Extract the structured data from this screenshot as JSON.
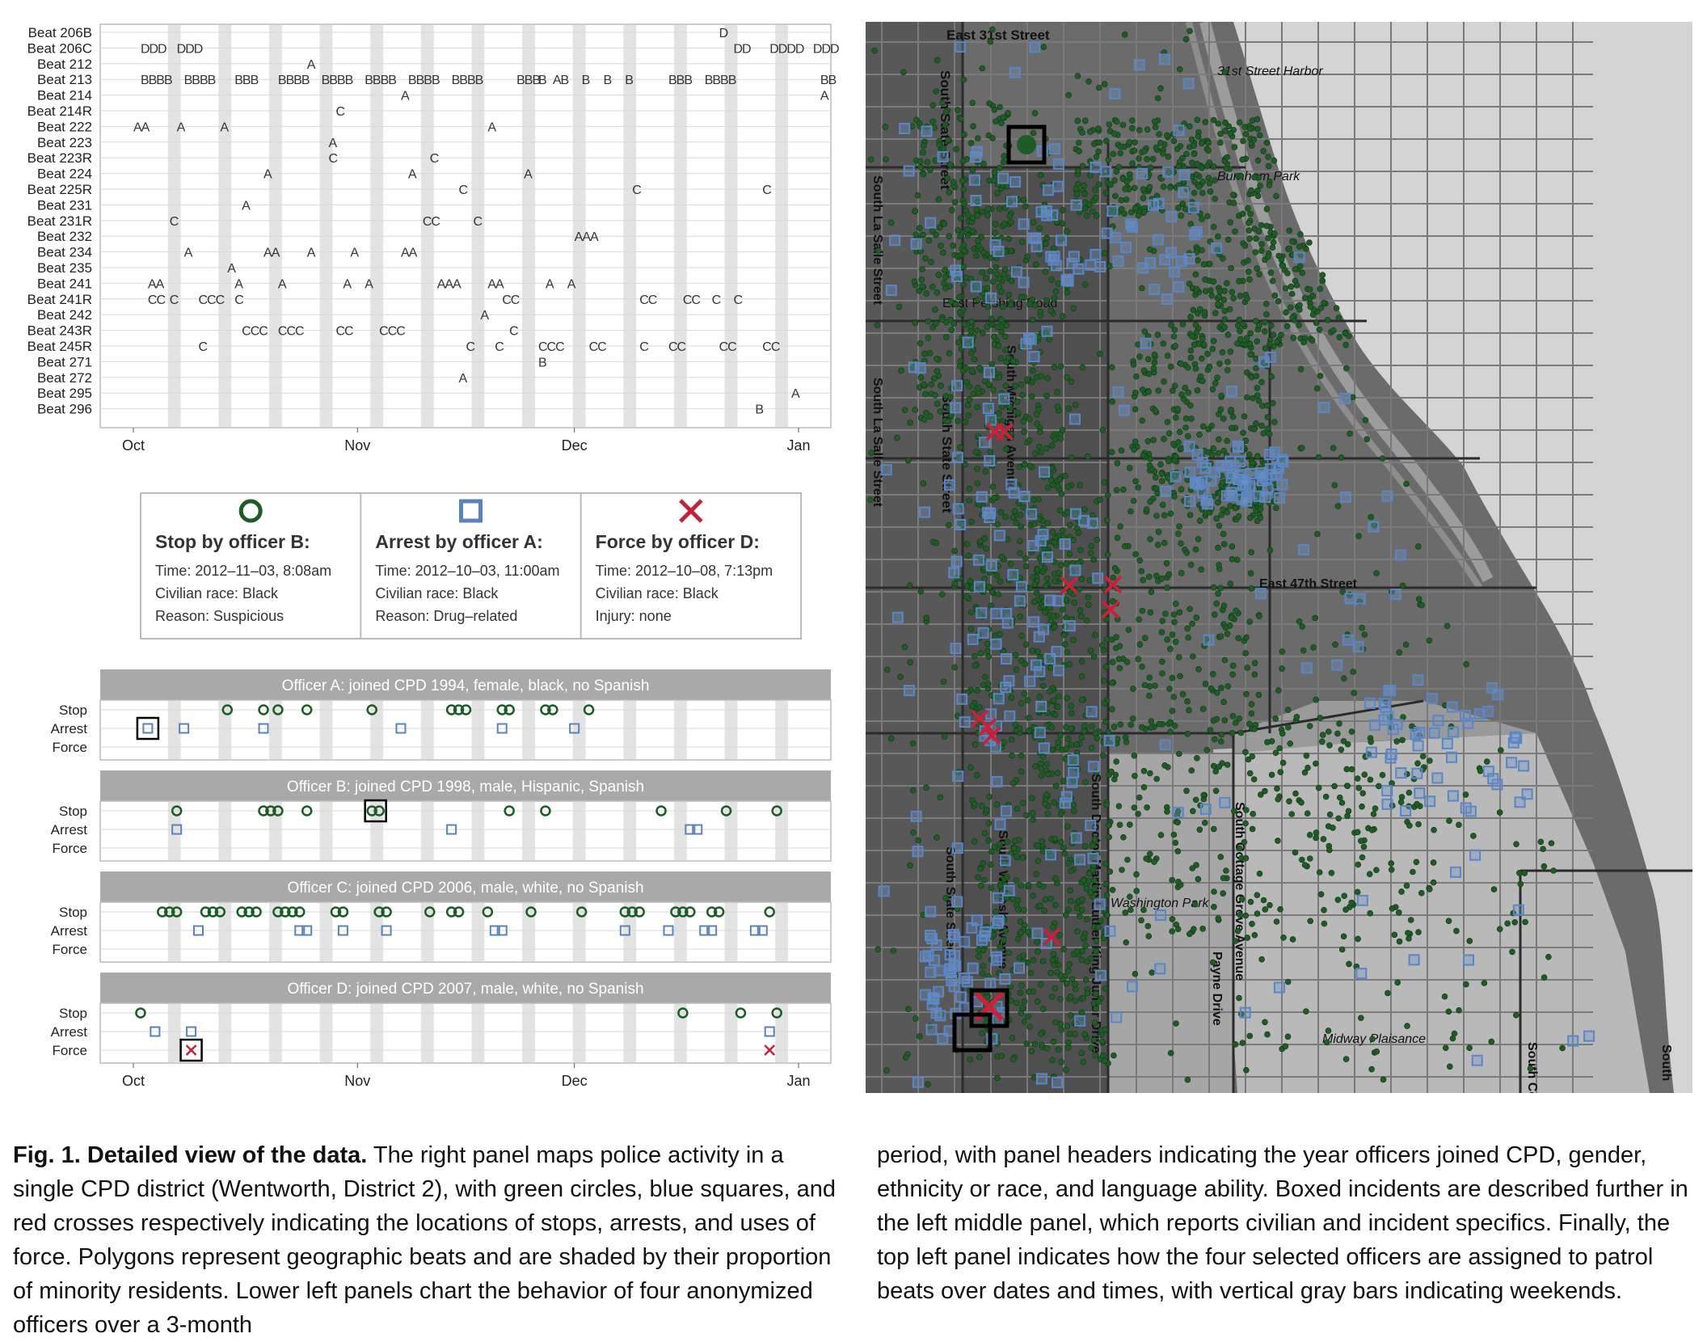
{
  "beat_chart": {
    "beats": [
      "Beat 206B",
      "Beat 206C",
      "Beat 212",
      "Beat 213",
      "Beat 214",
      "Beat 214R",
      "Beat 222",
      "Beat 223",
      "Beat 223R",
      "Beat 224",
      "Beat 225R",
      "Beat 231",
      "Beat 231R",
      "Beat 232",
      "Beat 234",
      "Beat 235",
      "Beat 241",
      "Beat 241R",
      "Beat 242",
      "Beat 243R",
      "Beat 245R",
      "Beat 271",
      "Beat 272",
      "Beat 295",
      "Beat 296"
    ],
    "x_ticks": [
      "Oct",
      "Nov",
      "Dec",
      "Jan"
    ],
    "entries": [
      {
        "beat": "Beat 206B",
        "day": 81,
        "text": "D"
      },
      {
        "beat": "Beat 206C",
        "day": 1,
        "text": "DDD"
      },
      {
        "beat": "Beat 206C",
        "day": 6,
        "text": "DDD"
      },
      {
        "beat": "Beat 206C",
        "day": 83,
        "text": "DD"
      },
      {
        "beat": "Beat 206C",
        "day": 88,
        "text": "DDDD"
      },
      {
        "beat": "Beat 206C",
        "day": 94,
        "text": "DDD"
      },
      {
        "beat": "Beat 212",
        "day": 24,
        "text": "A"
      },
      {
        "beat": "Beat 213",
        "day": 1,
        "text": "BBBB"
      },
      {
        "beat": "Beat 213",
        "day": 7,
        "text": "BBBB"
      },
      {
        "beat": "Beat 213",
        "day": 14,
        "text": "BBB"
      },
      {
        "beat": "Beat 213",
        "day": 20,
        "text": "BBBB"
      },
      {
        "beat": "Beat 213",
        "day": 26,
        "text": "BBBB"
      },
      {
        "beat": "Beat 213",
        "day": 32,
        "text": "BBBB"
      },
      {
        "beat": "Beat 213",
        "day": 38,
        "text": "BBBB"
      },
      {
        "beat": "Beat 213",
        "day": 44,
        "text": "BBBB"
      },
      {
        "beat": "Beat 213",
        "day": 53,
        "text": "BBB"
      },
      {
        "beat": "Beat 213",
        "day": 56,
        "text": "B"
      },
      {
        "beat": "Beat 213",
        "day": 58,
        "text": "AB"
      },
      {
        "beat": "Beat 213",
        "day": 62,
        "text": "B"
      },
      {
        "beat": "Beat 213",
        "day": 65,
        "text": "B"
      },
      {
        "beat": "Beat 213",
        "day": 68,
        "text": "B"
      },
      {
        "beat": "Beat 213",
        "day": 74,
        "text": "BBB"
      },
      {
        "beat": "Beat 213",
        "day": 79,
        "text": "BBBB"
      },
      {
        "beat": "Beat 213",
        "day": 95,
        "text": "BB"
      },
      {
        "beat": "Beat 214",
        "day": 37,
        "text": "A"
      },
      {
        "beat": "Beat 214",
        "day": 95,
        "text": "A"
      },
      {
        "beat": "Beat 214R",
        "day": 28,
        "text": "C"
      },
      {
        "beat": "Beat 222",
        "day": 0,
        "text": "AA"
      },
      {
        "beat": "Beat 222",
        "day": 6,
        "text": "A"
      },
      {
        "beat": "Beat 222",
        "day": 12,
        "text": "A"
      },
      {
        "beat": "Beat 222",
        "day": 49,
        "text": "A"
      },
      {
        "beat": "Beat 223",
        "day": 27,
        "text": "A"
      },
      {
        "beat": "Beat 223R",
        "day": 27,
        "text": "C"
      },
      {
        "beat": "Beat 223R",
        "day": 41,
        "text": "C"
      },
      {
        "beat": "Beat 224",
        "day": 18,
        "text": "A"
      },
      {
        "beat": "Beat 224",
        "day": 38,
        "text": "A"
      },
      {
        "beat": "Beat 224",
        "day": 54,
        "text": "A"
      },
      {
        "beat": "Beat 225R",
        "day": 45,
        "text": "C"
      },
      {
        "beat": "Beat 225R",
        "day": 69,
        "text": "C"
      },
      {
        "beat": "Beat 225R",
        "day": 87,
        "text": "C"
      },
      {
        "beat": "Beat 231",
        "day": 15,
        "text": "A"
      },
      {
        "beat": "Beat 231R",
        "day": 5,
        "text": "C"
      },
      {
        "beat": "Beat 231R",
        "day": 40,
        "text": "CC"
      },
      {
        "beat": "Beat 231R",
        "day": 47,
        "text": "C"
      },
      {
        "beat": "Beat 232",
        "day": 61,
        "text": "AAA"
      },
      {
        "beat": "Beat 234",
        "day": 7,
        "text": "A"
      },
      {
        "beat": "Beat 234",
        "day": 18,
        "text": "AA"
      },
      {
        "beat": "Beat 234",
        "day": 24,
        "text": "A"
      },
      {
        "beat": "Beat 234",
        "day": 30,
        "text": "A"
      },
      {
        "beat": "Beat 234",
        "day": 37,
        "text": "AA"
      },
      {
        "beat": "Beat 235",
        "day": 13,
        "text": "A"
      },
      {
        "beat": "Beat 241",
        "day": 2,
        "text": "AA"
      },
      {
        "beat": "Beat 241",
        "day": 14,
        "text": "A"
      },
      {
        "beat": "Beat 241",
        "day": 20,
        "text": "A"
      },
      {
        "beat": "Beat 241",
        "day": 29,
        "text": "A"
      },
      {
        "beat": "Beat 241",
        "day": 32,
        "text": "A"
      },
      {
        "beat": "Beat 241",
        "day": 42,
        "text": "AAA"
      },
      {
        "beat": "Beat 241",
        "day": 49,
        "text": "AA"
      },
      {
        "beat": "Beat 241",
        "day": 57,
        "text": "A"
      },
      {
        "beat": "Beat 241",
        "day": 60,
        "text": "A"
      },
      {
        "beat": "Beat 241R",
        "day": 2,
        "text": "CC"
      },
      {
        "beat": "Beat 241R",
        "day": 5,
        "text": "C"
      },
      {
        "beat": "Beat 241R",
        "day": 9,
        "text": "CCC"
      },
      {
        "beat": "Beat 241R",
        "day": 14,
        "text": "C"
      },
      {
        "beat": "Beat 241R",
        "day": 51,
        "text": "CC"
      },
      {
        "beat": "Beat 241R",
        "day": 70,
        "text": "CC"
      },
      {
        "beat": "Beat 241R",
        "day": 76,
        "text": "CC"
      },
      {
        "beat": "Beat 241R",
        "day": 80,
        "text": "C"
      },
      {
        "beat": "Beat 241R",
        "day": 83,
        "text": "C"
      },
      {
        "beat": "Beat 242",
        "day": 48,
        "text": "A"
      },
      {
        "beat": "Beat 243R",
        "day": 15,
        "text": "CCC"
      },
      {
        "beat": "Beat 243R",
        "day": 20,
        "text": "CCC"
      },
      {
        "beat": "Beat 243R",
        "day": 28,
        "text": "CC"
      },
      {
        "beat": "Beat 243R",
        "day": 34,
        "text": "CCC"
      },
      {
        "beat": "Beat 243R",
        "day": 52,
        "text": "C"
      },
      {
        "beat": "Beat 245R",
        "day": 9,
        "text": "C"
      },
      {
        "beat": "Beat 245R",
        "day": 46,
        "text": "C"
      },
      {
        "beat": "Beat 245R",
        "day": 50,
        "text": "C"
      },
      {
        "beat": "Beat 245R",
        "day": 56,
        "text": "CCC"
      },
      {
        "beat": "Beat 245R",
        "day": 63,
        "text": "CC"
      },
      {
        "beat": "Beat 245R",
        "day": 70,
        "text": "C"
      },
      {
        "beat": "Beat 245R",
        "day": 74,
        "text": "CC"
      },
      {
        "beat": "Beat 245R",
        "day": 81,
        "text": "CC"
      },
      {
        "beat": "Beat 245R",
        "day": 87,
        "text": "CC"
      },
      {
        "beat": "Beat 271",
        "day": 56,
        "text": "B"
      },
      {
        "beat": "Beat 272",
        "day": 45,
        "text": "A"
      },
      {
        "beat": "Beat 295",
        "day": 91,
        "text": "A"
      },
      {
        "beat": "Beat 296",
        "day": 86,
        "text": "B"
      }
    ]
  },
  "detail_boxes": [
    {
      "title": "Stop by officer B:",
      "icon": "circle",
      "color": "#1a5c23",
      "lines": [
        "Time: 2012–11–03, 8:08am",
        "Civilian race: Black",
        "Reason: Suspicious"
      ]
    },
    {
      "title": "Arrest by officer A:",
      "icon": "square",
      "color": "#5a82bd",
      "lines": [
        "Time: 2012–10–03, 11:00am",
        "Civilian race: Black",
        "Reason: Drug–related"
      ]
    },
    {
      "title": "Force by officer D:",
      "icon": "cross",
      "color": "#c0233a",
      "lines": [
        "Time: 2012–10–08, 7:13pm",
        "Civilian race: Black",
        "Injury: none"
      ]
    }
  ],
  "officers": [
    {
      "header": "Officer A: joined CPD 1994, female, black, no Spanish",
      "stops": [
        13,
        18,
        20,
        24,
        33,
        44,
        45,
        46,
        51,
        52,
        57,
        58,
        63
      ],
      "arrests": [
        2,
        7,
        18,
        37,
        51,
        61
      ],
      "forces": [],
      "boxed": [
        {
          "row": "Arrest",
          "day": 2
        }
      ]
    },
    {
      "header": "Officer B: joined CPD 1998, male, Hispanic, Spanish",
      "stops": [
        6,
        18,
        19,
        20,
        24,
        33,
        34,
        52,
        57,
        73,
        82,
        89
      ],
      "arrests": [
        6,
        44,
        77,
        78
      ],
      "forces": [],
      "boxed": [
        {
          "row": "Stop",
          "day": 33.5
        }
      ]
    },
    {
      "header": "Officer C: joined CPD 2006, male, white, no Spanish",
      "stops": [
        4,
        5,
        6,
        10,
        11,
        12,
        15,
        16,
        17,
        20,
        21,
        22,
        23,
        28,
        29,
        34,
        35,
        41,
        44,
        45,
        49,
        55,
        62,
        68,
        69,
        70,
        75,
        76,
        77,
        80,
        81,
        88
      ],
      "arrests": [
        9,
        23,
        24,
        29,
        35,
        50,
        51,
        68,
        74,
        79,
        80,
        86,
        87
      ],
      "forces": [],
      "boxed": []
    },
    {
      "header": "Officer D: joined CPD 2007, male, white, no Spanish",
      "stops": [
        1,
        76,
        84,
        89
      ],
      "arrests": [
        3,
        8,
        88
      ],
      "forces": [
        8,
        88
      ],
      "boxed": [
        {
          "row": "Force",
          "day": 8
        }
      ]
    }
  ],
  "officer_rows": [
    "Stop",
    "Arrest",
    "Force"
  ],
  "officer_x_ticks": [
    "Oct",
    "Nov",
    "Dec",
    "Jan"
  ],
  "map": {
    "street_labels": [
      "East 31st Street",
      "31st Street Harbor",
      "Burnham Park",
      "South State Street",
      "South La Salle Street",
      "South La Salle Street",
      "East Pershing Road",
      "South State Street",
      "South Michigan Avenue",
      "East 47th Street",
      "Washington Park",
      "South Cottage Grove Avenue",
      "Payne Drive",
      "South Doctor Martin Luther King Junior Drive",
      "Midway Plaisance",
      "South Cottage Grove",
      "South State Street",
      "South Wabash Avenue",
      "South"
    ],
    "legend_colors": {
      "stop": "#1f5c25",
      "arrest": "#5b86c5",
      "force": "#c8213a"
    }
  },
  "caption": {
    "bold": "Fig. 1. Detailed view of the data.",
    "left_text": " The right panel maps police activity in a single CPD district (Wentworth, District 2), with green circles, blue squares, and red crosses respectively indicating the locations of stops, arrests, and uses of force. Polygons represent geographic beats and are shaded by their proportion of minority residents. Lower left panels chart the behavior of four anonymized officers over a 3-month",
    "right_text": "period, with panel headers indicating the year officers joined CPD, gender, ethnicity or race, and language ability. Boxed incidents are described further in the left middle panel, which reports civilian and incident specifics. Finally, the top left panel indicates how the four selected officers are assigned to patrol beats over dates and times, with vertical gray bars indicating weekends."
  },
  "chart_data": [
    {
      "type": "scatter",
      "title": "",
      "x_range": [
        "2012-10-01",
        "2013-01-01"
      ],
      "x_ticks": [
        "Oct",
        "Nov",
        "Dec",
        "Jan"
      ],
      "description_ref": "beat_chart.entries"
    },
    {
      "type": "scatter",
      "title": "",
      "series_ref": "officers",
      "y_categories": [
        "Stop",
        "Arrest",
        "Force"
      ],
      "x_ticks": [
        "Oct",
        "Nov",
        "Dec",
        "Jan"
      ]
    }
  ]
}
